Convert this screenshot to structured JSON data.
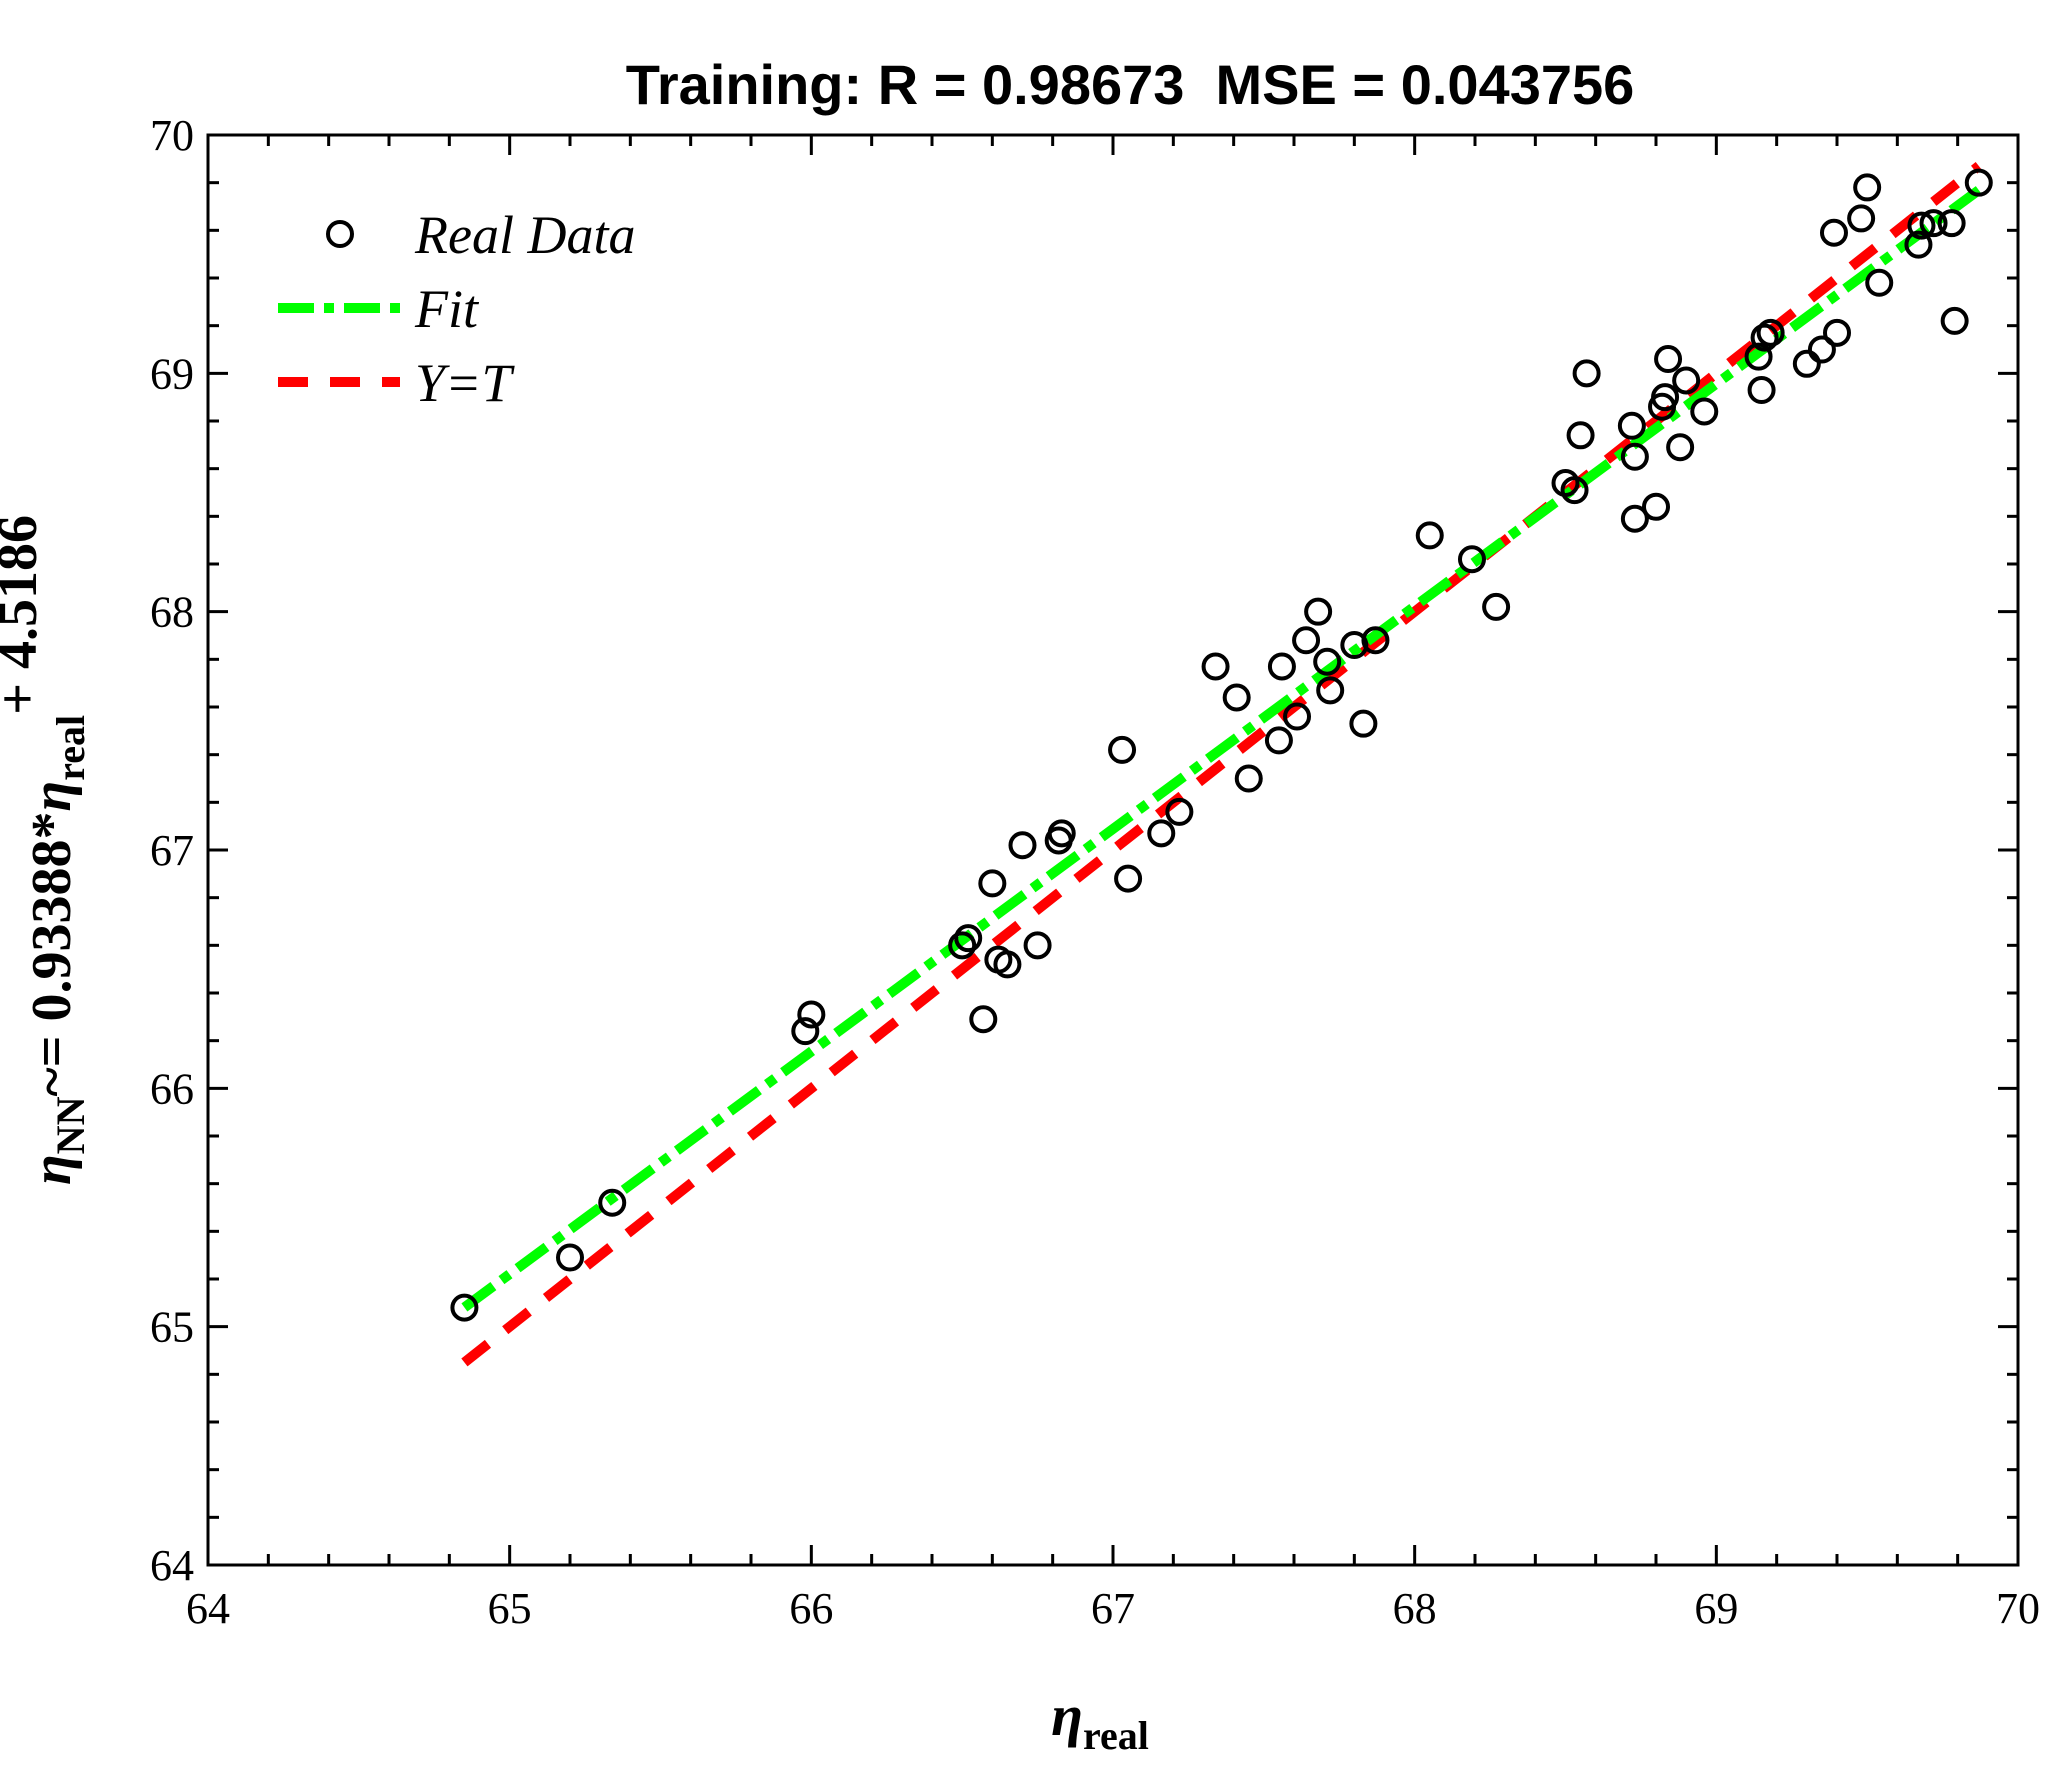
{
  "chart_data": {
    "type": "scatter",
    "title": "Training: R = 0.98673  MSE = 0.043756",
    "xlim": [
      64,
      70
    ],
    "ylim": [
      64,
      70
    ],
    "xticks": [
      64,
      65,
      66,
      67,
      68,
      69,
      70
    ],
    "yticks": [
      64,
      65,
      66,
      67,
      68,
      69,
      70
    ],
    "xlabel": {
      "symbol": "η",
      "sub": "real"
    },
    "ylabel": {
      "p1": "η",
      "sub1": "NN",
      "p2": "~= 0.93388*",
      "p3": "η",
      "sub2": "real",
      "p4": "+ 4.5186"
    },
    "legend": {
      "position": "top-left",
      "items": [
        {
          "label": "Real Data",
          "marker": "circle"
        },
        {
          "label": "Fit",
          "style": "dash-dot",
          "color": "#00ff00"
        },
        {
          "label": "Y=T",
          "style": "dashed",
          "color": "#ff0000"
        }
      ]
    },
    "fit": {
      "slope": 0.93388,
      "intercept": 4.5186,
      "x_range": [
        64.85,
        69.87
      ],
      "color": "#00ff00"
    },
    "identity": {
      "x_range": [
        64.85,
        69.87
      ],
      "color": "#ff0000"
    },
    "series": [
      {
        "name": "Real Data",
        "points": [
          [
            64.85,
            65.08
          ],
          [
            65.2,
            65.29
          ],
          [
            65.34,
            65.52
          ],
          [
            65.98,
            66.24
          ],
          [
            66.0,
            66.31
          ],
          [
            66.5,
            66.6
          ],
          [
            66.52,
            66.63
          ],
          [
            66.57,
            66.29
          ],
          [
            66.6,
            66.86
          ],
          [
            66.62,
            66.54
          ],
          [
            66.65,
            66.52
          ],
          [
            66.7,
            67.02
          ],
          [
            66.75,
            66.6
          ],
          [
            66.82,
            67.04
          ],
          [
            66.83,
            67.07
          ],
          [
            67.03,
            67.42
          ],
          [
            67.05,
            66.88
          ],
          [
            67.16,
            67.07
          ],
          [
            67.22,
            67.16
          ],
          [
            67.34,
            67.77
          ],
          [
            67.41,
            67.64
          ],
          [
            67.45,
            67.3
          ],
          [
            67.55,
            67.46
          ],
          [
            67.56,
            67.77
          ],
          [
            67.61,
            67.56
          ],
          [
            67.64,
            67.88
          ],
          [
            67.68,
            68.0
          ],
          [
            67.71,
            67.79
          ],
          [
            67.72,
            67.67
          ],
          [
            67.8,
            67.86
          ],
          [
            67.83,
            67.53
          ],
          [
            67.87,
            67.88
          ],
          [
            68.05,
            68.32
          ],
          [
            68.19,
            68.22
          ],
          [
            68.27,
            68.02
          ],
          [
            68.5,
            68.54
          ],
          [
            68.53,
            68.51
          ],
          [
            68.55,
            68.74
          ],
          [
            68.57,
            69.0
          ],
          [
            68.72,
            68.78
          ],
          [
            68.73,
            68.65
          ],
          [
            68.73,
            68.39
          ],
          [
            68.8,
            68.44
          ],
          [
            68.82,
            68.86
          ],
          [
            68.83,
            68.9
          ],
          [
            68.84,
            69.06
          ],
          [
            68.88,
            68.69
          ],
          [
            68.9,
            68.97
          ],
          [
            68.96,
            68.84
          ],
          [
            69.14,
            69.07
          ],
          [
            69.15,
            68.93
          ],
          [
            69.16,
            69.15
          ],
          [
            69.18,
            69.17
          ],
          [
            69.3,
            69.04
          ],
          [
            69.35,
            69.1
          ],
          [
            69.39,
            69.59
          ],
          [
            69.4,
            69.17
          ],
          [
            69.48,
            69.65
          ],
          [
            69.5,
            69.78
          ],
          [
            69.54,
            69.38
          ],
          [
            69.67,
            69.54
          ],
          [
            69.68,
            69.62
          ],
          [
            69.72,
            69.63
          ],
          [
            69.78,
            69.63
          ],
          [
            69.79,
            69.22
          ],
          [
            69.87,
            69.8
          ]
        ]
      }
    ]
  }
}
